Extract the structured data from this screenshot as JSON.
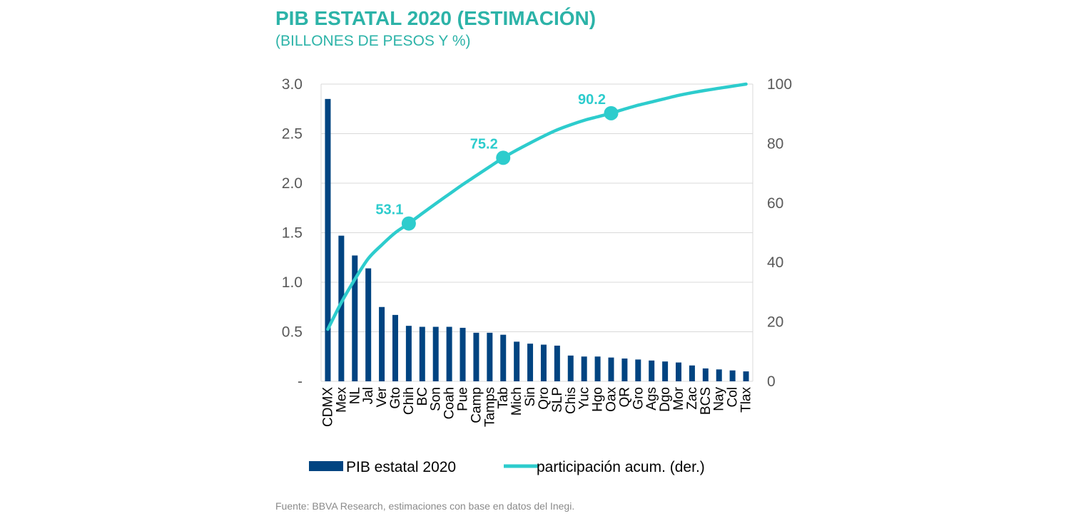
{
  "header": {
    "title": "PIB ESTATAL 2020 (ESTIMACIÓN)",
    "subtitle": "(BILLONES DE PESOS Y %)"
  },
  "footer": {
    "source": "Fuente: BBVA Research, estimaciones con base en datos del Inegi."
  },
  "colors": {
    "bar": "#004481",
    "line": "#2dcccd",
    "title": "#2cb3a8",
    "grid": "#d9d9d9"
  },
  "chart_data": {
    "type": "bar",
    "categories": [
      "CDMX",
      "Mex",
      "NL",
      "Jal",
      "Ver",
      "Gto",
      "Chih",
      "BC",
      "Son",
      "Coah",
      "Pue",
      "Camp",
      "Tamps",
      "Tab",
      "Mich",
      "Sin",
      "Qro",
      "SLP",
      "Chis",
      "Yuc",
      "Hgo",
      "Oax",
      "QR",
      "Gro",
      "Ags",
      "Dgo",
      "Mor",
      "Zac",
      "BCS",
      "Nay",
      "Col",
      "Tlax"
    ],
    "series": [
      {
        "name": "PIB estatal 2020",
        "type": "bar",
        "axis": "left",
        "values": [
          2.85,
          1.47,
          1.27,
          1.14,
          0.75,
          0.67,
          0.56,
          0.55,
          0.55,
          0.55,
          0.54,
          0.49,
          0.49,
          0.47,
          0.4,
          0.38,
          0.37,
          0.36,
          0.26,
          0.25,
          0.25,
          0.24,
          0.23,
          0.22,
          0.21,
          0.2,
          0.19,
          0.16,
          0.13,
          0.12,
          0.11,
          0.1
        ]
      },
      {
        "name": "participación acum. (der.)",
        "type": "line",
        "axis": "right",
        "values": [
          17.5,
          26.5,
          34.3,
          41.3,
          45.9,
          50.0,
          53.1,
          56.5,
          59.8,
          63.0,
          66.2,
          69.2,
          72.2,
          75.2,
          77.8,
          80.2,
          82.5,
          84.6,
          86.3,
          87.8,
          89.0,
          90.2,
          91.6,
          92.9,
          94.0,
          95.1,
          96.2,
          97.1,
          97.9,
          98.6,
          99.3,
          100.0
        ]
      }
    ],
    "highlighted": [
      {
        "category": "Chih",
        "value": 53.1,
        "label": "53.1"
      },
      {
        "category": "Tab",
        "value": 75.2,
        "label": "75.2"
      },
      {
        "category": "Oax",
        "value": 90.2,
        "label": "90.2"
      }
    ],
    "y_left": {
      "ylim": [
        0,
        3.0
      ],
      "ticks": [
        0,
        0.5,
        1.0,
        1.5,
        2.0,
        2.5,
        3.0
      ],
      "tick_labels": [
        "-",
        "0.5",
        "1.0",
        "1.5",
        "2.0",
        "2.5",
        "3.0"
      ]
    },
    "y_right": {
      "ylim": [
        0,
        100
      ],
      "ticks": [
        0,
        20,
        40,
        60,
        80,
        100
      ],
      "tick_labels": [
        "0",
        "20",
        "40",
        "60",
        "80",
        "100"
      ]
    },
    "grid": true,
    "legend": {
      "position": "bottom",
      "entries": [
        "PIB estatal 2020",
        "participación acum. (der.)"
      ]
    }
  }
}
